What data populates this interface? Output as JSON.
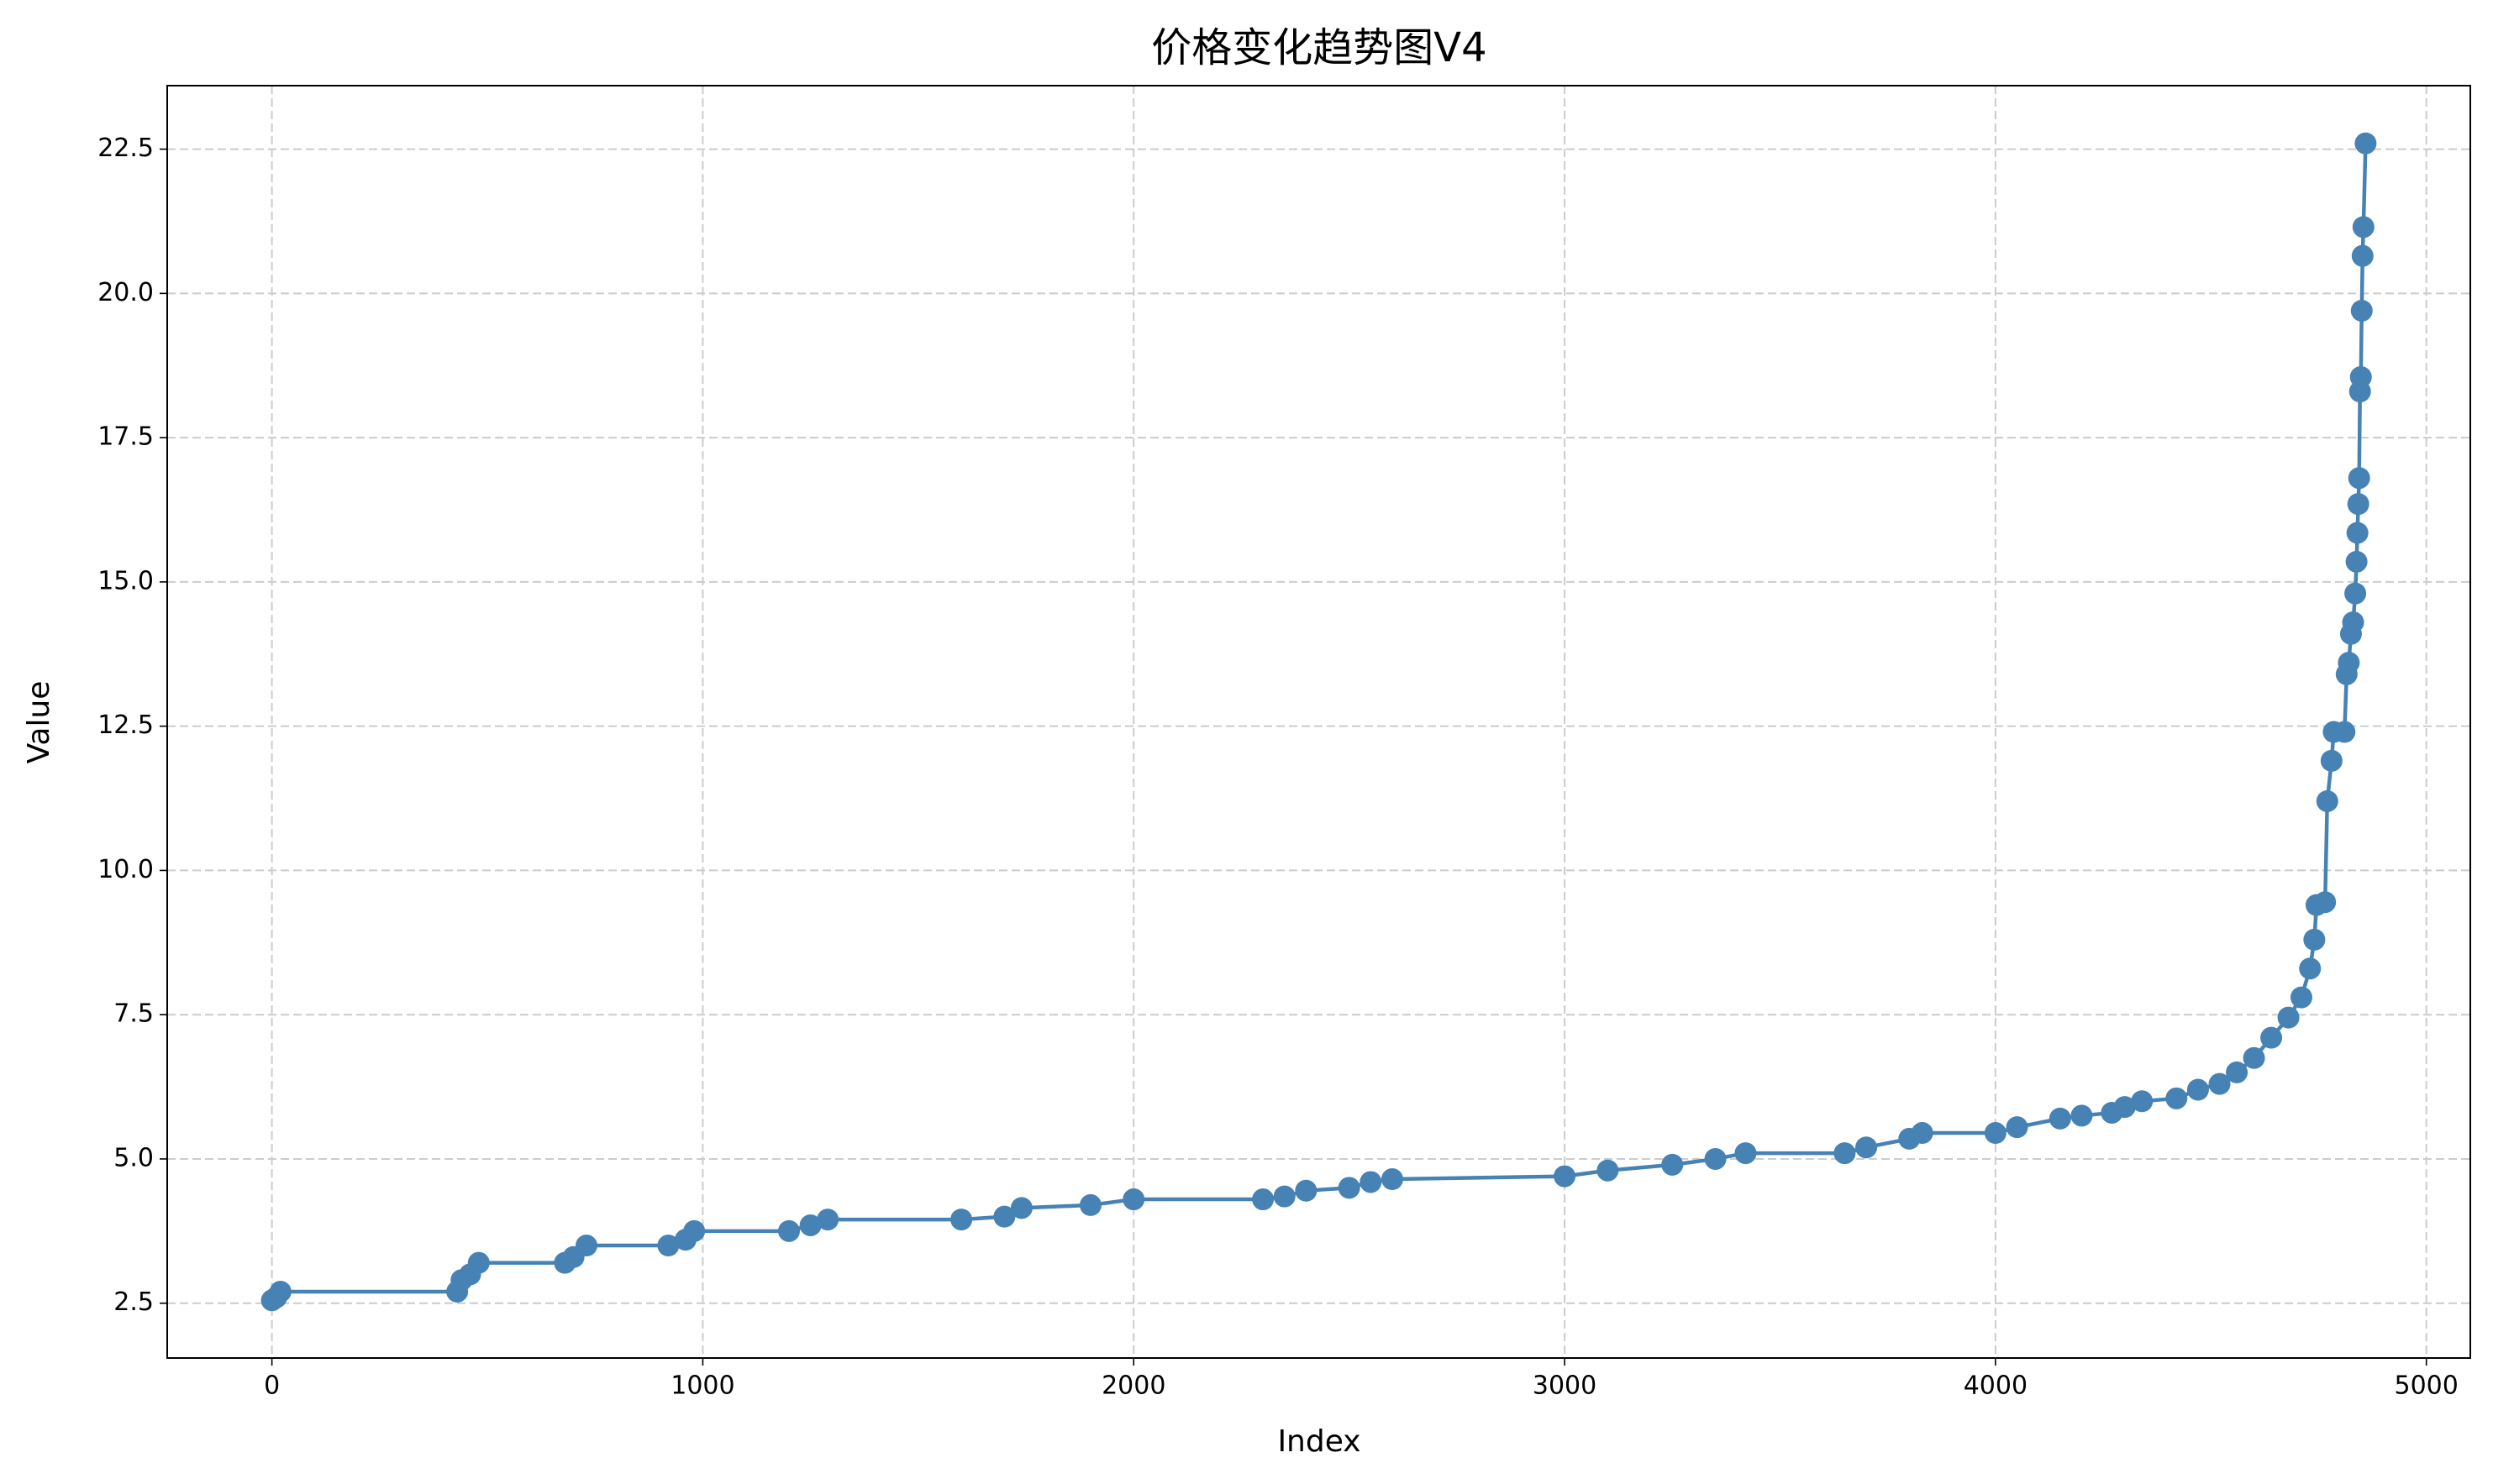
{
  "chart_data": {
    "type": "line",
    "title": "价格变化趋势图V4",
    "x_label": "Index",
    "y_label": "Value",
    "x": [
      0,
      10,
      20,
      430,
      440,
      460,
      480,
      680,
      700,
      730,
      920,
      960,
      980,
      1200,
      1250,
      1290,
      1600,
      1700,
      1740,
      1900,
      2000,
      2300,
      2350,
      2400,
      2500,
      2550,
      2600,
      3000,
      3100,
      3250,
      3350,
      3420,
      3650,
      3700,
      3800,
      3830,
      4000,
      4050,
      4150,
      4200,
      4270,
      4300,
      4340,
      4420,
      4470,
      4520,
      4560,
      4600,
      4640,
      4680,
      4710,
      4730,
      4740,
      4745,
      4765,
      4770,
      4780,
      4785,
      4810,
      4815,
      4820,
      4825,
      4830,
      4835,
      4838,
      4840,
      4842,
      4844,
      4846,
      4848,
      4850,
      4852,
      4854,
      4859
    ],
    "series": [
      {
        "name": "Value",
        "color": "#4682b4",
        "values": [
          2.55,
          2.6,
          2.7,
          2.7,
          2.9,
          3.0,
          3.2,
          3.2,
          3.3,
          3.5,
          3.5,
          3.6,
          3.75,
          3.75,
          3.85,
          3.95,
          3.95,
          4.0,
          4.15,
          4.2,
          4.3,
          4.3,
          4.35,
          4.45,
          4.5,
          4.6,
          4.65,
          4.7,
          4.8,
          4.9,
          5.0,
          5.1,
          5.1,
          5.2,
          5.35,
          5.45,
          5.45,
          5.55,
          5.7,
          5.75,
          5.8,
          5.9,
          6.0,
          6.05,
          6.2,
          6.3,
          6.5,
          6.75,
          7.1,
          7.45,
          7.8,
          8.3,
          8.8,
          9.4,
          9.45,
          11.2,
          11.9,
          12.4,
          12.4,
          13.4,
          13.6,
          14.1,
          14.3,
          14.8,
          15.35,
          15.85,
          16.35,
          16.8,
          18.3,
          18.55,
          19.7,
          20.65,
          21.15,
          22.6
        ]
      }
    ],
    "xlim": [
      -243,
      5102
    ],
    "ylim": [
      1.55,
      23.6
    ],
    "xticks": [
      0,
      1000,
      2000,
      3000,
      4000,
      5000
    ],
    "yticks": [
      {
        "value": 2.5,
        "label": "2.5"
      },
      {
        "value": 5,
        "label": "5.0"
      },
      {
        "value": 7.5,
        "label": "7.5"
      },
      {
        "value": 10,
        "label": "10.0"
      },
      {
        "value": 12.5,
        "label": "12.5"
      },
      {
        "value": 15,
        "label": "15.0"
      },
      {
        "value": 17.5,
        "label": "17.5"
      },
      {
        "value": 20,
        "label": "20.0"
      },
      {
        "value": 22.5,
        "label": "22.5"
      }
    ],
    "grid": true
  }
}
